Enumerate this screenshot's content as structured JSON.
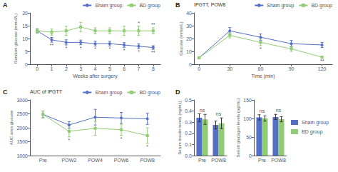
{
  "chart_data": [
    {
      "type": "line",
      "title": "A",
      "xlabel": "Weeks after surgery",
      "ylabel": "Random glucose (mmol/L)",
      "x": [
        0,
        1,
        2,
        3,
        4,
        5,
        6,
        7,
        8
      ],
      "xlim": [
        -0.5,
        8.5
      ],
      "xticks": [
        0,
        1,
        2,
        3,
        4,
        5,
        6,
        7,
        8
      ],
      "ylim": [
        0,
        20
      ],
      "yticks": [
        0,
        5,
        10,
        15,
        20
      ],
      "grid": false,
      "legend": "upper right",
      "series": [
        {
          "name": "Sham group",
          "marker": "circle",
          "values": [
            13.0,
            9.5,
            8.5,
            8.5,
            8.0,
            8.0,
            7.5,
            7.0,
            6.5
          ],
          "errors": [
            0.8,
            0.9,
            1.0,
            0.9,
            0.9,
            0.9,
            0.9,
            0.9,
            0.7
          ],
          "annotations": [
            null,
            "**",
            "*",
            "*",
            "*",
            "*",
            "*",
            "*",
            "**"
          ]
        },
        {
          "name": "BD group",
          "marker": "square",
          "values": [
            13.0,
            12.5,
            13.0,
            14.5,
            13.0,
            13.0,
            13.0,
            13.0,
            13.0
          ],
          "errors": [
            0.8,
            1.2,
            1.8,
            1.8,
            1.2,
            1.2,
            1.8,
            1.8,
            1.2
          ],
          "annotations": [
            null,
            null,
            null,
            null,
            null,
            null,
            null,
            "*",
            "**"
          ]
        }
      ]
    },
    {
      "type": "line",
      "title": "B",
      "subtitle": "IPGTT, POW8",
      "xlabel": "Time (min)",
      "ylabel": "Glucose (mmol/L)",
      "x": [
        0,
        30,
        60,
        90,
        120
      ],
      "xlim": [
        -5,
        130
      ],
      "xticks": [
        0,
        30,
        60,
        90,
        120
      ],
      "ylim": [
        0,
        40
      ],
      "yticks": [
        0,
        10,
        20,
        30,
        40
      ],
      "grid": false,
      "legend": "upper right",
      "series": [
        {
          "name": "Sham group",
          "marker": "circle",
          "values": [
            5.0,
            26.0,
            21.0,
            16.0,
            15.0
          ],
          "errors": [
            0.5,
            2.5,
            2.5,
            2.5,
            2.0
          ]
        },
        {
          "name": "BD group",
          "marker": "square",
          "values": [
            5.0,
            22.5,
            17.0,
            12.0,
            5.5
          ],
          "errors": [
            0.5,
            2.0,
            2.5,
            2.0,
            0.7
          ],
          "annotations": [
            null,
            null,
            "*",
            null,
            "**"
          ]
        }
      ]
    },
    {
      "type": "line",
      "title": "C",
      "subtitle": "AUC of IPGTT",
      "ylabel": "AUC area glucose",
      "categories": [
        "Pre",
        "POW2",
        "POW4",
        "POW6",
        "POW8"
      ],
      "ylim": [
        1000,
        3000
      ],
      "yticks": [
        1000,
        1500,
        2000,
        2500,
        3000
      ],
      "grid": false,
      "legend": "upper right",
      "series": [
        {
          "name": "Sham group",
          "marker": "circle",
          "values": [
            2480,
            2100,
            2380,
            2350,
            2320
          ],
          "errors": [
            120,
            120,
            280,
            200,
            200
          ]
        },
        {
          "name": "BD group",
          "marker": "square",
          "values": [
            2480,
            1870,
            1980,
            1930,
            1720
          ],
          "errors": [
            120,
            200,
            250,
            200,
            280
          ],
          "annotations": [
            null,
            "*",
            null,
            "*",
            "*"
          ]
        }
      ]
    },
    {
      "type": "bar",
      "title": "D",
      "ylabel": "Serum insulin levels (ng/mL)",
      "categories": [
        "Pre",
        "POW8"
      ],
      "ylim": [
        0.0,
        0.5
      ],
      "yticks": [
        {
          "value": 0.0,
          "label": "0.0"
        },
        0.1,
        0.2,
        0.3,
        0.4,
        0.5
      ],
      "grid": false,
      "annotations": [
        "ns",
        "ns"
      ],
      "series": [
        {
          "name": "Sham group",
          "values": [
            0.34,
            0.275
          ],
          "errors": [
            0.035,
            0.035
          ]
        },
        {
          "name": "BD group",
          "values": [
            0.325,
            0.29
          ],
          "errors": [
            0.045,
            0.048
          ]
        }
      ]
    },
    {
      "type": "bar",
      "ylabel": "Serum glucagon levels (pg/mL)",
      "categories": [
        "Pre",
        "POW8"
      ],
      "ylim": [
        0,
        150
      ],
      "yticks": [
        0,
        50,
        100,
        150
      ],
      "grid": false,
      "legend": "right",
      "annotations": [
        "ns",
        "ns"
      ],
      "series": [
        {
          "name": "Sham group",
          "values": [
            103,
            104
          ],
          "errors": [
            7,
            7
          ]
        },
        {
          "name": "BD group",
          "values": [
            100,
            98
          ],
          "errors": [
            7,
            7
          ]
        }
      ]
    }
  ]
}
